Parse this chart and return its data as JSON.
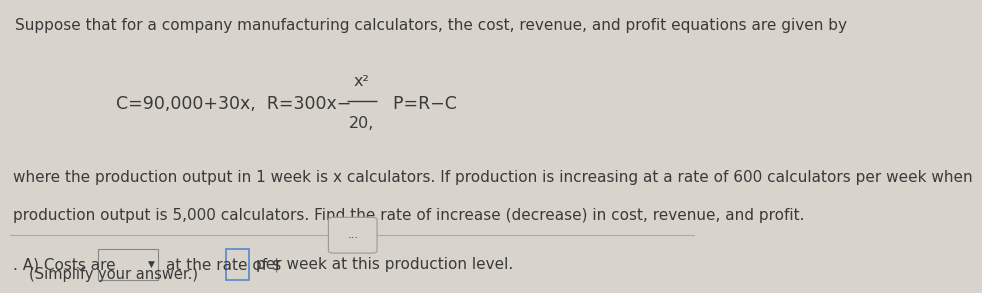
{
  "bg_color": "#d8d4cc",
  "text_color": "#3a3a3a",
  "title_line": "Suppose that for a company manufacturing calculators, the cost, revenue, and profit equations are given by",
  "eq_left": "C=90,000+30x,  R=300x−",
  "eq_fraction_num": "x²",
  "eq_fraction_den": "20",
  "eq_after_fraction": ",  P=R−C",
  "body_line1": "where the production output in 1 week is x calculators. If production is increasing at a rate of 600 calculators per week when",
  "body_line2": "production output is 5,000 calculators. Find the rate of increase (decrease) in cost, revenue, and profit.",
  "dots_label": "...",
  "answer_prefix": ". A) Costs are",
  "answer_middle": "at the rate of $",
  "answer_end": "per week at this production level.",
  "simplify_line": "(Simplify your answer.)",
  "sep_color": "#aaaaaa",
  "dropdown_edge_color": "#888888",
  "input_edge_color": "#5588cc",
  "dots_box_edge": "#999999",
  "font_size_title": 11.0,
  "font_size_body": 11.0,
  "font_size_eq": 12.5,
  "font_size_small": 10.5
}
